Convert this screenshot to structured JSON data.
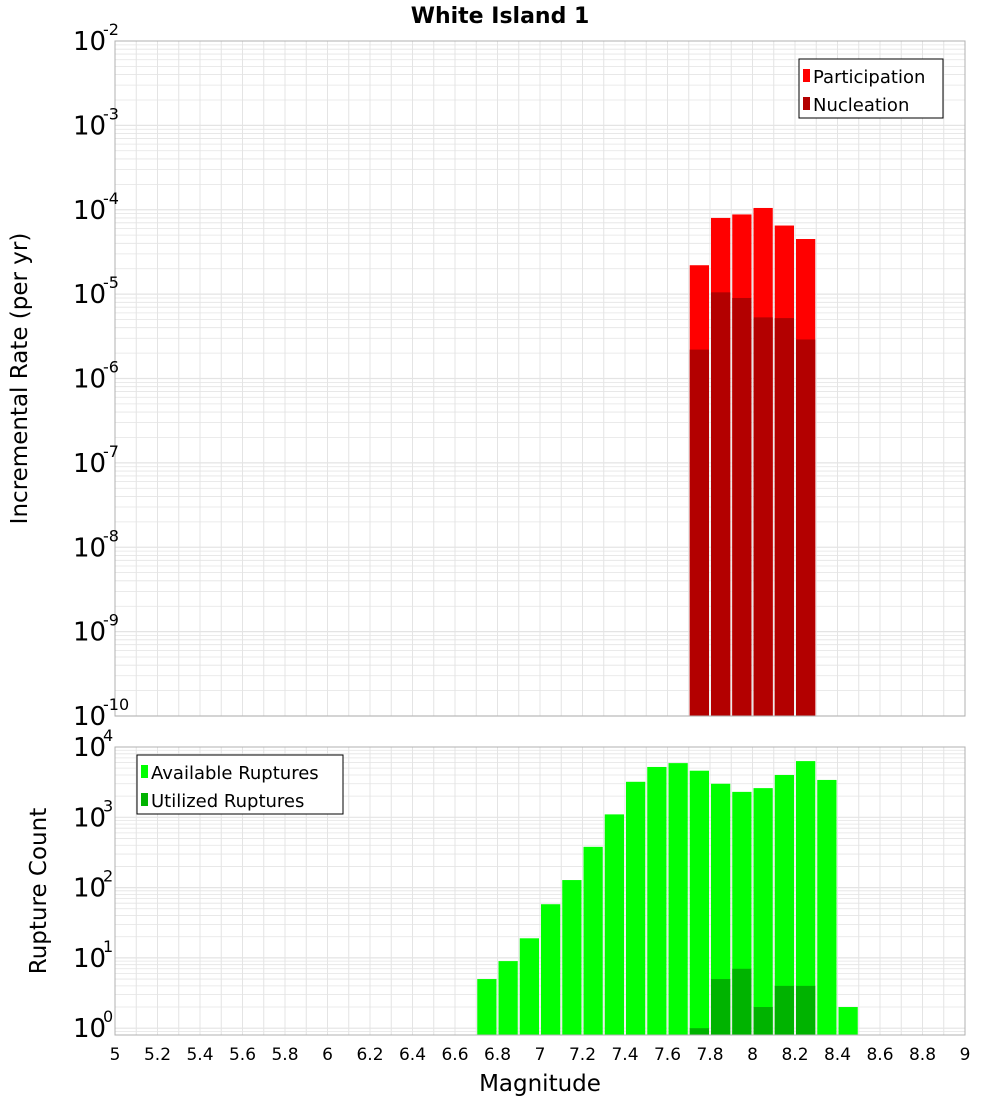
{
  "colors": {
    "participation": "#ff0000",
    "nucleation": "#b30000",
    "available": "#00ff00",
    "utilized": "#00b300",
    "grid": "#e4e4e4",
    "frame": "#b0b0b0"
  },
  "chart_data": [
    {
      "type": "bar",
      "scale": "log",
      "title": "White Island 1",
      "xlabel": "",
      "ylabel": "Incremental Rate (per yr)",
      "xlim": [
        5,
        9
      ],
      "ylim": [
        1e-10,
        0.01
      ],
      "ytick_exponents": [
        "-10",
        "-9",
        "-8",
        "-7",
        "-6",
        "-5",
        "-4",
        "-3",
        "-2"
      ],
      "tick_base": "10",
      "bin_width": 0.1,
      "legend": {
        "position": "top-right",
        "entries": [
          "Participation",
          "Nucleation"
        ]
      },
      "series": [
        {
          "name": "Participation",
          "x": [
            7.75,
            7.85,
            7.95,
            8.05,
            8.15,
            8.25
          ],
          "values": [
            2.2e-05,
            8e-05,
            8.8e-05,
            0.000105,
            6.5e-05,
            4.5e-05
          ]
        },
        {
          "name": "Nucleation",
          "x": [
            7.75,
            7.85,
            7.95,
            8.05,
            8.15,
            8.25
          ],
          "values": [
            2.2e-06,
            1.05e-05,
            9e-06,
            5.3e-06,
            5.2e-06,
            2.9e-06
          ]
        }
      ]
    },
    {
      "type": "bar",
      "scale": "log",
      "title": "",
      "xlabel": "Magnitude",
      "ylabel": "Rupture Count",
      "xlim": [
        5,
        9
      ],
      "ylim": [
        0.8,
        10000
      ],
      "ytick_exponents": [
        "0",
        "1",
        "2",
        "3",
        "4"
      ],
      "tick_base": "10",
      "xticks": [
        "5",
        "5.2",
        "5.4",
        "5.6",
        "5.8",
        "6",
        "6.2",
        "6.4",
        "6.6",
        "6.8",
        "7",
        "7.2",
        "7.4",
        "7.6",
        "7.8",
        "8",
        "8.2",
        "8.4",
        "8.6",
        "8.8",
        "9"
      ],
      "bin_width": 0.1,
      "legend": {
        "position": "top-left",
        "entries": [
          "Available Ruptures",
          "Utilized Ruptures"
        ]
      },
      "series": [
        {
          "name": "Available Ruptures",
          "x": [
            6.75,
            6.85,
            6.95,
            7.05,
            7.15,
            7.25,
            7.35,
            7.45,
            7.55,
            7.65,
            7.75,
            7.85,
            7.95,
            8.05,
            8.15,
            8.25,
            8.35,
            8.45
          ],
          "values": [
            5,
            9,
            19,
            58,
            128,
            380,
            1100,
            3200,
            5200,
            5900,
            4600,
            3000,
            2300,
            2600,
            4000,
            6300,
            3400,
            2
          ]
        },
        {
          "name": "Utilized Ruptures",
          "x": [
            7.75,
            7.85,
            7.95,
            8.05,
            8.15,
            8.25
          ],
          "values": [
            1,
            5,
            7,
            2,
            4,
            4
          ]
        }
      ]
    }
  ]
}
